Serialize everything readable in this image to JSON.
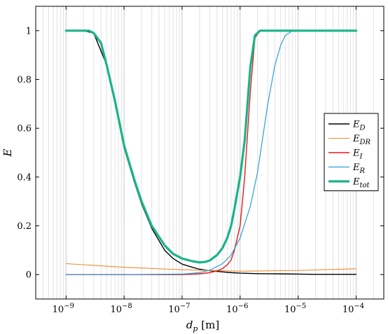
{
  "chart_data": {
    "type": "line",
    "xlabel": "d_p [m]",
    "ylabel": "E",
    "xscale": "log",
    "xlim": [
      3e-10,
      0.0003
    ],
    "ylim": [
      -0.1,
      1.1
    ],
    "grid": "vertical minor and major (log x)",
    "legend_position": "right",
    "x_ticks": [
      {
        "value": 1e-09,
        "base": "10",
        "exp": "−9"
      },
      {
        "value": 1e-08,
        "base": "10",
        "exp": "−8"
      },
      {
        "value": 1e-07,
        "base": "10",
        "exp": "−7"
      },
      {
        "value": 1e-06,
        "base": "10",
        "exp": "−6"
      },
      {
        "value": 1e-05,
        "base": "10",
        "exp": "−5"
      },
      {
        "value": 0.0001,
        "base": "10",
        "exp": "−4"
      }
    ],
    "y_ticks": [
      {
        "value": 0,
        "label": "0"
      },
      {
        "value": 0.2,
        "label": "0.2"
      },
      {
        "value": 0.4,
        "label": "0.4"
      },
      {
        "value": 0.6,
        "label": "0.6"
      },
      {
        "value": 0.8,
        "label": "0.8"
      },
      {
        "value": 1,
        "label": "1"
      }
    ],
    "series": [
      {
        "name": "E_D",
        "label_main": "E",
        "label_sub": "D",
        "color": "#000000",
        "width": 1.4,
        "x": [
          1e-09,
          2e-09,
          3e-09,
          5e-09,
          7e-09,
          1e-08,
          1.5e-08,
          2e-08,
          3e-08,
          5e-08,
          7e-08,
          1e-07,
          1.5e-07,
          2e-07,
          3e-07,
          5e-07,
          7e-07,
          1e-06,
          2e-06,
          5e-06,
          1e-05,
          2e-05,
          5e-05,
          0.0001
        ],
        "y": [
          1.0,
          1.0,
          0.99,
          0.86,
          0.7,
          0.52,
          0.38,
          0.29,
          0.19,
          0.1,
          0.066,
          0.043,
          0.03,
          0.022,
          0.016,
          0.011,
          0.008,
          0.006,
          0.004,
          0.003,
          0.002,
          0.001,
          0.001,
          0.001
        ]
      },
      {
        "name": "E_DR",
        "label_main": "E",
        "label_sub": "DR",
        "color": "#ec8a2f",
        "width": 1.1,
        "x": [
          1e-09,
          1e-08,
          1e-07,
          1e-06,
          1e-05,
          0.0001
        ],
        "y": [
          0.045,
          0.03,
          0.02,
          0.014,
          0.017,
          0.024
        ]
      },
      {
        "name": "E_I",
        "label_main": "E",
        "label_sub": "I",
        "color": "#e41a1c",
        "width": 1.4,
        "x": [
          1e-09,
          1e-08,
          1e-07,
          2e-07,
          3e-07,
          4e-07,
          5e-07,
          6e-07,
          7e-07,
          8e-07,
          1e-06,
          1.2e-06,
          1.5e-06,
          1.8e-06,
          2.2e-06,
          3e-06,
          1e-05,
          0.0001
        ],
        "y": [
          0.0,
          0.0,
          0.0,
          0.003,
          0.008,
          0.015,
          0.025,
          0.04,
          0.06,
          0.1,
          0.2,
          0.4,
          0.75,
          0.97,
          1.0,
          1.0,
          1.0,
          1.0
        ]
      },
      {
        "name": "E_R",
        "label_main": "E",
        "label_sub": "R",
        "color": "#2c9fdb",
        "width": 1.2,
        "x": [
          1e-09,
          1e-08,
          1e-07,
          2e-07,
          3e-07,
          5e-07,
          7e-07,
          1e-06,
          1.5e-06,
          2e-06,
          3e-06,
          4e-06,
          5e-06,
          6e-06,
          8e-06,
          1e-05,
          0.0001
        ],
        "y": [
          0.0,
          0.0,
          0.002,
          0.008,
          0.018,
          0.045,
          0.08,
          0.15,
          0.28,
          0.42,
          0.7,
          0.86,
          0.94,
          0.98,
          1.0,
          1.0,
          1.0
        ]
      },
      {
        "name": "E_tot",
        "label_main": "E",
        "label_sub": "tot",
        "color": "#1ab38a",
        "width": 3.2,
        "x": [
          1e-09,
          2e-09,
          2.5e-09,
          3e-09,
          4e-09,
          5e-09,
          7e-09,
          1e-08,
          1.5e-08,
          2e-08,
          3e-08,
          5e-08,
          7e-08,
          1e-07,
          1.5e-07,
          2e-07,
          2.5e-07,
          3e-07,
          4e-07,
          5e-07,
          6e-07,
          7e-07,
          8e-07,
          1e-06,
          1.2e-06,
          1.5e-06,
          1.8e-06,
          2.2e-06,
          3e-06,
          1e-05,
          0.0001
        ],
        "y": [
          1.0,
          1.0,
          1.0,
          0.99,
          0.95,
          0.86,
          0.71,
          0.53,
          0.39,
          0.3,
          0.2,
          0.12,
          0.085,
          0.066,
          0.055,
          0.05,
          0.052,
          0.058,
          0.08,
          0.11,
          0.15,
          0.2,
          0.27,
          0.4,
          0.55,
          0.85,
          0.98,
          1.0,
          1.0,
          1.0,
          1.0
        ]
      }
    ]
  }
}
